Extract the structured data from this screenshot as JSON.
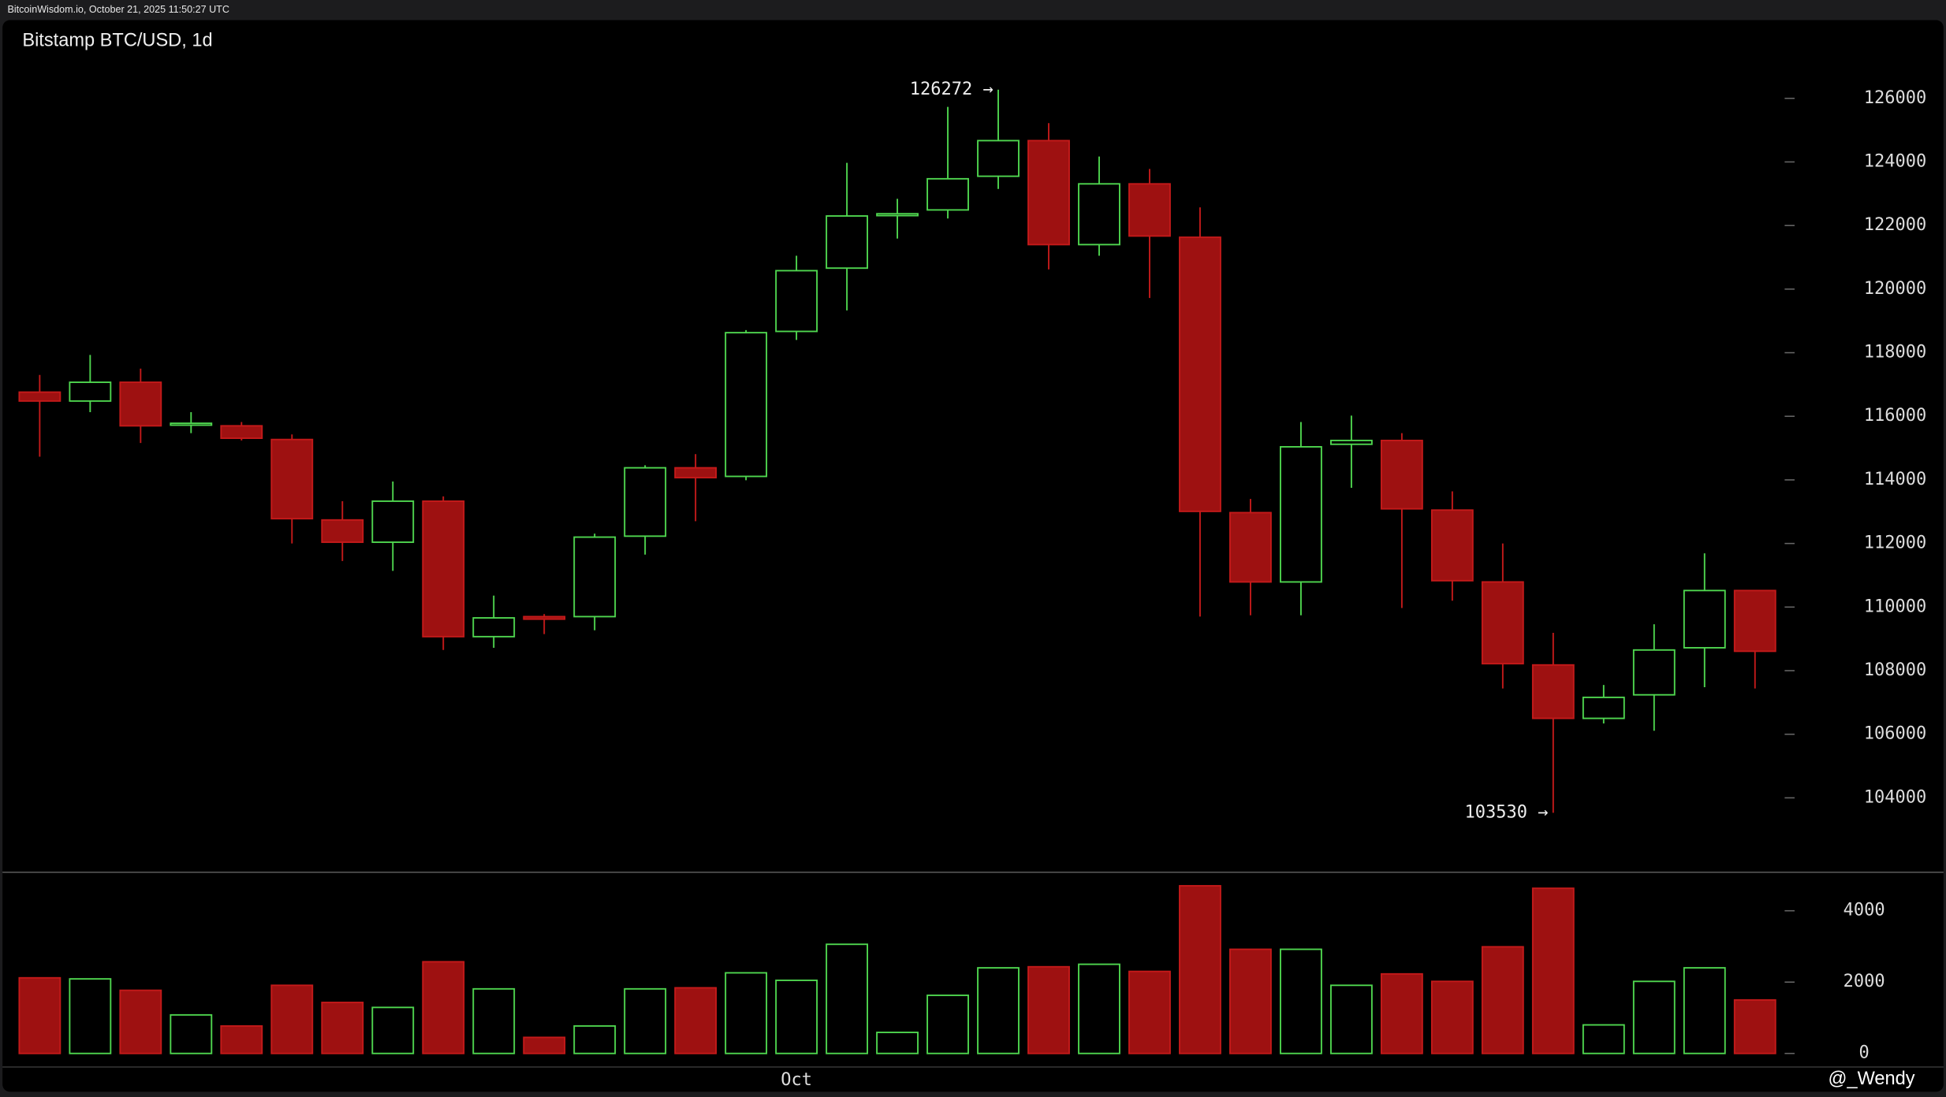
{
  "header": "BitcoinWisdom.io, October 21, 2025 11:50:27 UTC",
  "watermark": "@_Wendy",
  "chart_data": {
    "type": "candlestick",
    "title": "Bitstamp BTC/USD, 1d",
    "categories": [
      null,
      null,
      null,
      null,
      null,
      null,
      null,
      null,
      null,
      null,
      null,
      null,
      null,
      null,
      null,
      "Oct",
      null,
      null,
      null,
      null,
      null,
      null,
      null,
      null,
      null,
      null,
      null,
      null,
      null,
      null,
      null,
      null,
      null,
      null,
      null
    ],
    "open": [
      116760,
      116480,
      117070,
      115740,
      115700,
      115270,
      112740,
      112040,
      113330,
      109070,
      109700,
      109700,
      112230,
      114380,
      114110,
      118670,
      120660,
      122330,
      122490,
      123550,
      124670,
      121400,
      123310,
      121630,
      112970,
      110790,
      115120,
      115240,
      113050,
      110790,
      108180,
      106500,
      107240,
      108720,
      110520
    ],
    "high": [
      117300,
      117930,
      117500,
      116130,
      115820,
      115430,
      113330,
      113950,
      113480,
      110360,
      109780,
      112310,
      114460,
      114810,
      118710,
      121050,
      123970,
      122840,
      125730,
      126272,
      125220,
      124170,
      123780,
      122570,
      113400,
      115820,
      116020,
      115470,
      113640,
      112000,
      109190,
      107550,
      109460,
      111690,
      110520
    ],
    "low": [
      114730,
      116130,
      115160,
      115470,
      115240,
      112000,
      111450,
      111140,
      108650,
      108720,
      109150,
      109270,
      111650,
      112700,
      113990,
      118400,
      119330,
      121590,
      122220,
      123150,
      120620,
      121050,
      119720,
      109700,
      109740,
      109740,
      113750,
      109970,
      110200,
      107440,
      103530,
      106340,
      106110,
      107480,
      107440
    ],
    "close": [
      116480,
      117070,
      115700,
      115780,
      115310,
      112780,
      112040,
      113330,
      109070,
      109660,
      109620,
      112200,
      114380,
      114070,
      118630,
      120580,
      122300,
      122370,
      123470,
      124670,
      121400,
      123310,
      121670,
      113010,
      110790,
      115040,
      115240,
      113090,
      110830,
      108220,
      106500,
      107160,
      108650,
      110520,
      108610
    ],
    "volume": [
      2120,
      2090,
      1770,
      1080,
      770,
      1910,
      1430,
      1290,
      2570,
      1810,
      450,
      770,
      1810,
      1840,
      2260,
      2050,
      3060,
      590,
      1630,
      2400,
      2430,
      2500,
      2300,
      4700,
      2920,
      2920,
      1910,
      2230,
      2020,
      2990,
      4630,
      800,
      2020,
      2400,
      1500
    ],
    "up_color": "#4fd64f",
    "down_color": "#9e1111",
    "ylim": [
      101660,
      128500
    ],
    "yticks": [
      104000,
      106000,
      108000,
      110000,
      112000,
      114000,
      116000,
      118000,
      120000,
      122000,
      124000,
      126000
    ],
    "y2lim": [
      -380,
      5080
    ],
    "y2ticks": [
      0,
      2000,
      4000
    ],
    "annotations": [
      {
        "label": "126272 →",
        "value": 126272,
        "index": 19
      },
      {
        "label": "103530 →",
        "value": 103530,
        "index": 30
      }
    ]
  }
}
